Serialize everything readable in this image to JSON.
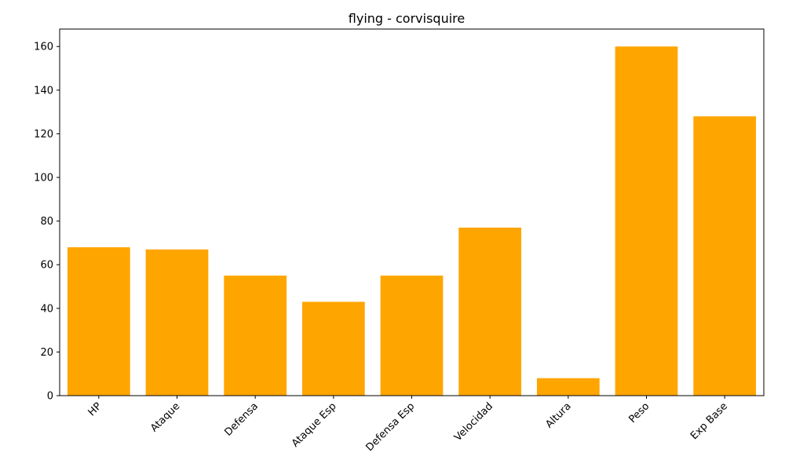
{
  "chart_data": {
    "type": "bar",
    "title": "flying - corvisquire",
    "xlabel": "",
    "ylabel": "",
    "categories": [
      "HP",
      "Ataque",
      "Defensa",
      "Ataque Esp",
      "Defensa Esp",
      "Velocidad",
      "Altura",
      "Peso",
      "Exp Base"
    ],
    "values": [
      68,
      67,
      55,
      43,
      55,
      77,
      8,
      160,
      128
    ],
    "ylim": [
      0,
      168
    ],
    "yticks": [
      0,
      20,
      40,
      60,
      80,
      100,
      120,
      140,
      160
    ],
    "bar_color": "#ffa500",
    "grid": false,
    "legend": false
  }
}
